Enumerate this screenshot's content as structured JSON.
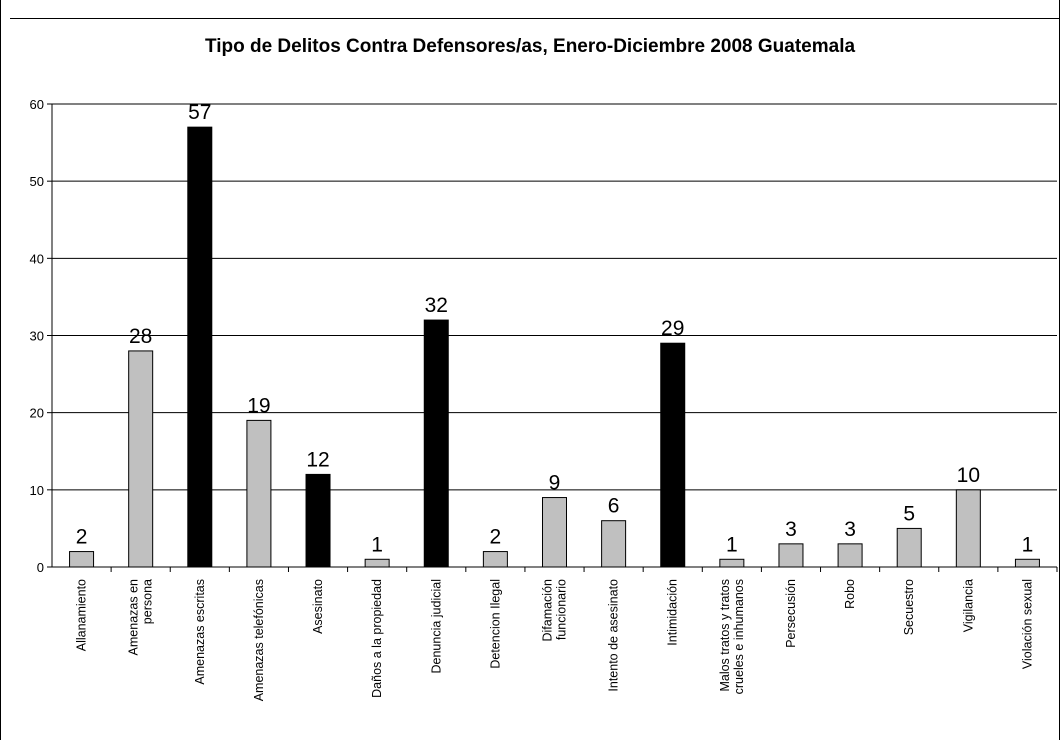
{
  "title": "Tipo de Delitos Contra Defensores/as, Enero-Diciembre 2008 Guatemala",
  "colors": {
    "bar_gray": "#c0c0c0",
    "bar_black": "#000000",
    "grid": "#000000",
    "background": "#ffffff"
  },
  "chart_data": {
    "type": "bar",
    "title": "Tipo de Delitos Contra Defensores/as, Enero-Diciembre 2008 Guatemala",
    "xlabel": "",
    "ylabel": "",
    "ylim": [
      0,
      60
    ],
    "yticks": [
      0,
      10,
      20,
      30,
      40,
      50,
      60
    ],
    "grid": true,
    "legend": "none",
    "categories": [
      [
        "Allanamiento"
      ],
      [
        "Amenazas en",
        "persona"
      ],
      [
        "Amenazas escritas"
      ],
      [
        "Amenazas telefónicas"
      ],
      [
        "Asesinato"
      ],
      [
        "Daños a la propiedad"
      ],
      [
        "Denuncia judicial"
      ],
      [
        "Detencion Ilegal"
      ],
      [
        "Difamación",
        "funcionario"
      ],
      [
        "Intento de asesinato"
      ],
      [
        "Intimidación"
      ],
      [
        "Malos tratos y tratos",
        "crueles e inhumanos"
      ],
      [
        "Persecusión"
      ],
      [
        "Robo"
      ],
      [
        "Secuestro"
      ],
      [
        "Vigilancia"
      ],
      [
        "Violación sexual"
      ]
    ],
    "values": [
      2,
      28,
      57,
      19,
      12,
      1,
      32,
      2,
      9,
      6,
      29,
      1,
      3,
      3,
      5,
      10,
      1
    ],
    "highlight": [
      false,
      false,
      true,
      false,
      true,
      false,
      true,
      false,
      false,
      false,
      true,
      false,
      false,
      false,
      false,
      false,
      false
    ]
  }
}
